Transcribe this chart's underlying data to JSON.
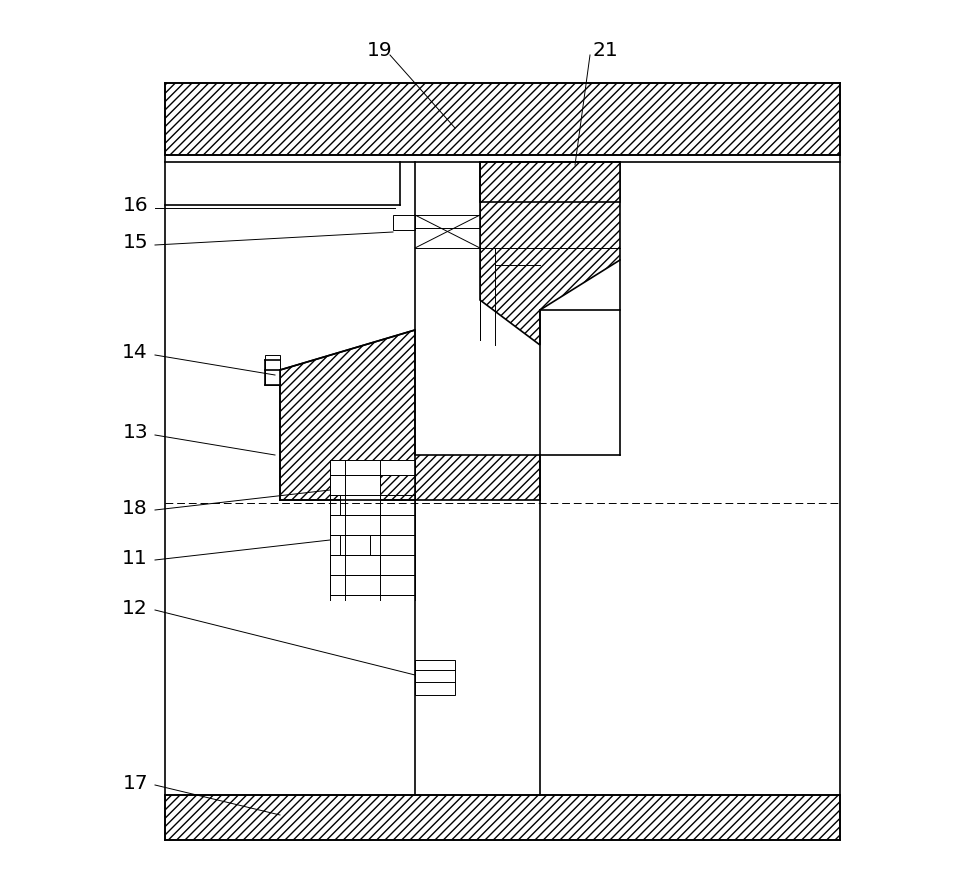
{
  "fig_width": 9.58,
  "fig_height": 8.96,
  "bg_color": "#ffffff",
  "line_color": "#000000",
  "lw": 1.2,
  "tlw": 0.7
}
